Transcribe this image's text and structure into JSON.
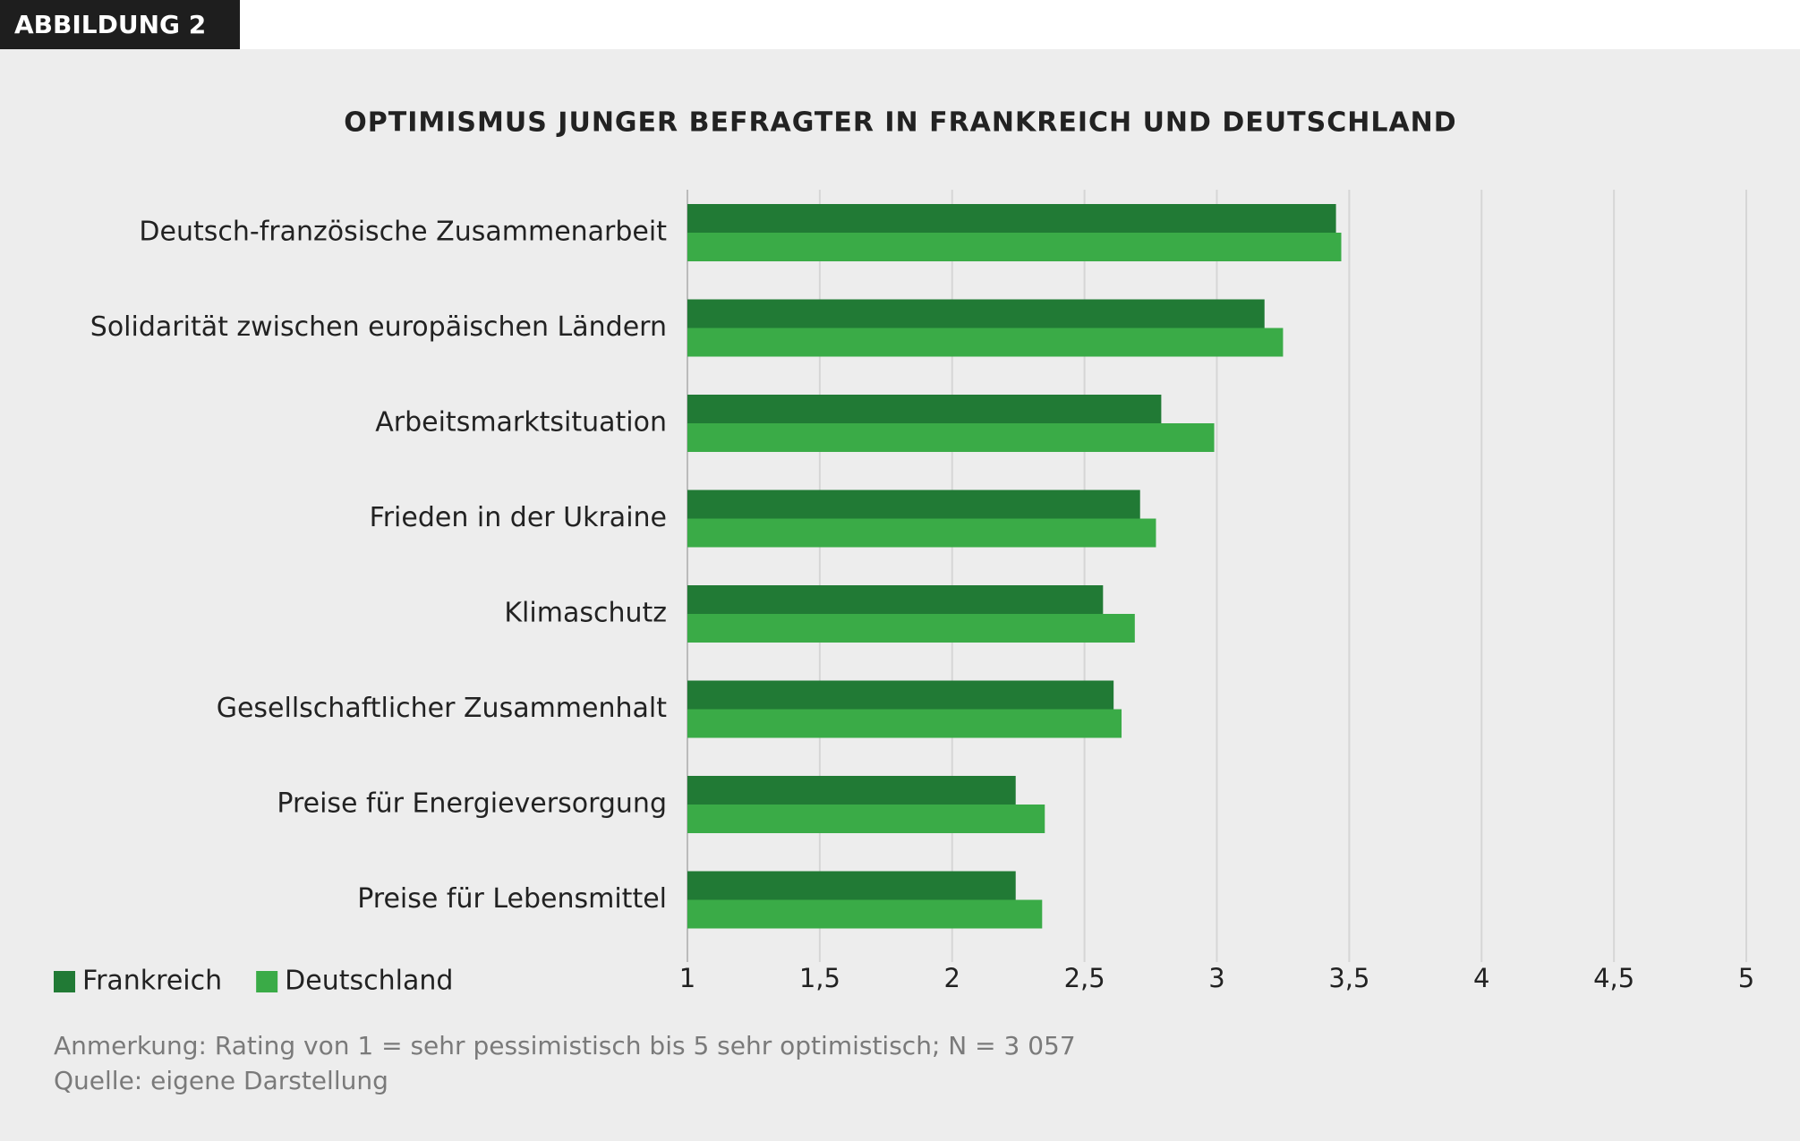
{
  "header": "ABBILDUNG 2",
  "chart_data": {
    "type": "hbar",
    "title": "OPTIMISMUS JUNGER BEFRAGTER IN FRANKREICH UND DEUTSCHLAND",
    "categories": [
      "Deutsch-französische Zusammenarbeit",
      "Solidarität zwischen europäischen Ländern",
      "Arbeitsmarktsituation",
      "Frieden in der Ukraine",
      "Klimaschutz",
      "Gesellschaftlicher Zusammenhalt",
      "Preise für Energieversorgung",
      "Preise für Lebensmittel"
    ],
    "series": [
      {
        "name": "Frankreich",
        "color": "#217a35",
        "values": [
          3.45,
          3.18,
          2.79,
          2.71,
          2.57,
          2.61,
          2.24,
          2.24
        ]
      },
      {
        "name": "Deutschland",
        "color": "#3aab47",
        "values": [
          3.47,
          3.25,
          2.99,
          2.77,
          2.69,
          2.64,
          2.35,
          2.34
        ]
      }
    ],
    "xlim": [
      1,
      5
    ],
    "xticks": [
      1,
      {
        "value": 1.5,
        "label": "1,5"
      },
      2,
      {
        "value": 2.5,
        "label": "2,5"
      },
      3,
      {
        "value": 3.5,
        "label": "3,5"
      },
      4,
      {
        "value": 4.5,
        "label": "4,5"
      },
      5
    ],
    "grid": true,
    "legend": "bottom-left",
    "notes": [
      "Anmerkung: Rating von 1 = sehr pessimistisch bis 5 sehr optimistisch; N = 3 057",
      "Quelle: eigene Darstellung"
    ]
  }
}
